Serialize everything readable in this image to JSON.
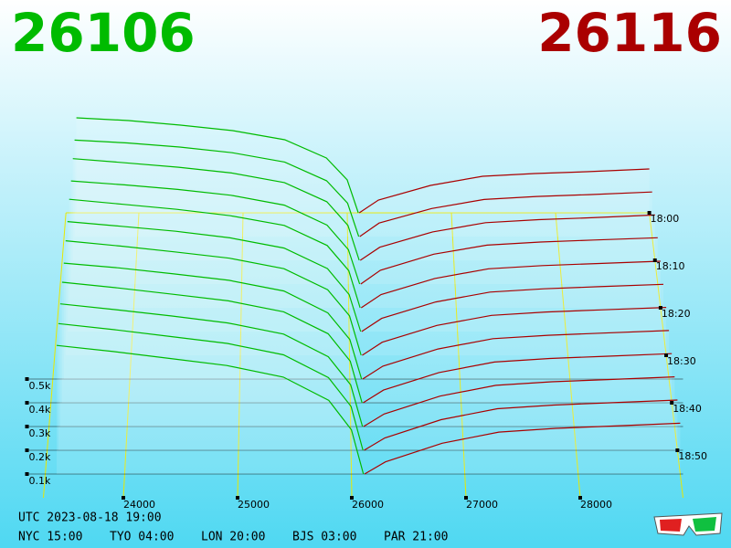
{
  "chart_data": {
    "type": "depth3d",
    "best_bid": 26106,
    "best_ask": 26116,
    "bid_color": "#00bb00",
    "ask_color": "#aa0000",
    "xlim": [
      23300,
      28900
    ],
    "xticks": [
      24000,
      25000,
      26000,
      27000,
      28000
    ],
    "depth_lim": [
      0,
      600
    ],
    "depth_ticks": [
      {
        "value": 100,
        "label": "0.1k"
      },
      {
        "value": 200,
        "label": "0.2k"
      },
      {
        "value": 300,
        "label": "0.3k"
      },
      {
        "value": 400,
        "label": "0.4k"
      },
      {
        "value": 500,
        "label": "0.5k"
      }
    ],
    "time_lim": [
      0,
      60
    ],
    "time_ticks": [
      {
        "value": 0,
        "label": "18:00"
      },
      {
        "value": 10,
        "label": "18:10"
      },
      {
        "value": 20,
        "label": "18:20"
      },
      {
        "value": 30,
        "label": "18:30"
      },
      {
        "value": 40,
        "label": "18:40"
      },
      {
        "value": 50,
        "label": "18:50"
      }
    ],
    "bid_prices": [
      23400,
      23900,
      24400,
      24900,
      25400,
      25800,
      26000,
      26106
    ],
    "ask_prices": [
      26116,
      26300,
      26800,
      27300,
      27800,
      28300,
      28900
    ],
    "snapshots": [
      {
        "minute": 0,
        "bids": [
          520,
          505,
          480,
          450,
          400,
          300,
          180,
          0
        ],
        "asks": [
          0,
          70,
          150,
          200,
          215,
          225,
          240
        ]
      },
      {
        "minute": 5,
        "bids": [
          515,
          500,
          478,
          448,
          398,
          298,
          178,
          0
        ],
        "asks": [
          0,
          72,
          150,
          198,
          214,
          224,
          238
        ]
      },
      {
        "minute": 10,
        "bids": [
          530,
          508,
          485,
          455,
          405,
          305,
          182,
          0
        ],
        "asks": [
          0,
          68,
          148,
          196,
          212,
          222,
          236
        ]
      },
      {
        "minute": 15,
        "bids": [
          525,
          505,
          482,
          452,
          402,
          300,
          175,
          0
        ],
        "asks": [
          0,
          70,
          152,
          198,
          214,
          224,
          236
        ]
      },
      {
        "minute": 20,
        "bids": [
          540,
          515,
          490,
          458,
          410,
          310,
          185,
          0
        ],
        "asks": [
          0,
          66,
          146,
          194,
          210,
          220,
          232
        ]
      },
      {
        "minute": 25,
        "bids": [
          535,
          512,
          488,
          456,
          406,
          306,
          180,
          0
        ],
        "asks": [
          0,
          64,
          144,
          192,
          208,
          218,
          230
        ]
      },
      {
        "minute": 30,
        "bids": [
          545,
          520,
          492,
          462,
          412,
          312,
          188,
          0
        ],
        "asks": [
          0,
          62,
          142,
          190,
          206,
          216,
          228
        ]
      },
      {
        "minute": 35,
        "bids": [
          540,
          518,
          490,
          460,
          410,
          308,
          184,
          0
        ],
        "asks": [
          0,
          60,
          140,
          188,
          204,
          214,
          226
        ]
      },
      {
        "minute": 40,
        "bids": [
          550,
          524,
          495,
          465,
          415,
          315,
          190,
          0
        ],
        "asks": [
          0,
          58,
          138,
          186,
          202,
          212,
          224
        ]
      },
      {
        "minute": 45,
        "bids": [
          548,
          522,
          494,
          463,
          413,
          312,
          186,
          0
        ],
        "asks": [
          0,
          56,
          136,
          184,
          200,
          210,
          222
        ]
      },
      {
        "minute": 50,
        "bids": [
          555,
          528,
          498,
          468,
          418,
          318,
          192,
          0
        ],
        "asks": [
          0,
          54,
          134,
          182,
          198,
          208,
          220
        ]
      },
      {
        "minute": 55,
        "bids": [
          552,
          526,
          496,
          466,
          416,
          316,
          190,
          0
        ],
        "asks": [
          0,
          52,
          132,
          180,
          196,
          206,
          218
        ]
      }
    ],
    "footer": {
      "utc": "UTC 2023-08-18 19:00",
      "zones": [
        "NYC 15:00",
        "TYO 04:00",
        "LON 20:00",
        "BJS 03:00",
        "PAR 21:00"
      ]
    }
  }
}
